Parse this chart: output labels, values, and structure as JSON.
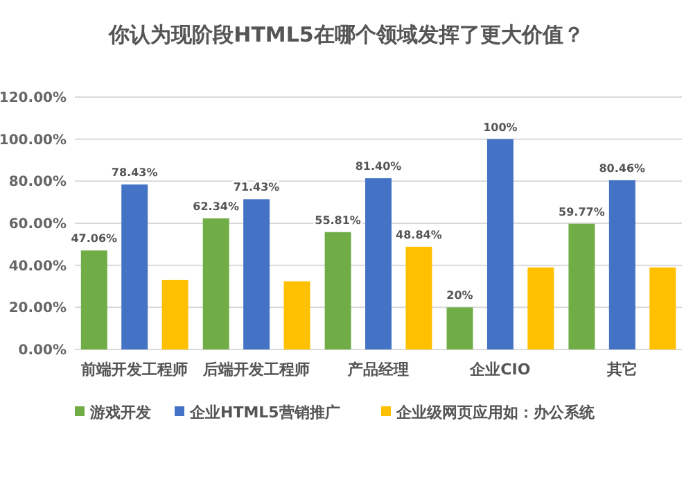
{
  "chart_data": {
    "type": "bar",
    "title": "你认为现阶段HTML5在哪个领域发挥了更大价值？",
    "categories": [
      "前端开发工程师",
      "后端开发工程师",
      "产品经理",
      "企业CIO",
      "其它"
    ],
    "series": [
      {
        "name": "游戏开发",
        "color": "#70ad47",
        "values": [
          47.06,
          62.34,
          55.81,
          20,
          59.77
        ],
        "value_labels": [
          "47.06%",
          "62.34%",
          "55.81%",
          "20%",
          "59.77%"
        ]
      },
      {
        "name": "企业HTML5营销推广",
        "color": "#4472c4",
        "values": [
          78.43,
          71.43,
          81.4,
          100,
          80.46
        ],
        "value_labels": [
          "78.43%",
          "71.43%",
          "81.40%",
          "100%",
          "80.46%"
        ]
      },
      {
        "name": "企业级网页应用如：办公系统",
        "color": "#ffc000",
        "values": [
          33,
          32.4,
          48.84,
          39,
          39
        ],
        "value_labels": [
          null,
          null,
          "48.84%",
          null,
          null
        ]
      }
    ],
    "ylim": [
      0,
      120
    ],
    "yticks": [
      {
        "value": 0,
        "label": "0.00%"
      },
      {
        "value": 20,
        "label": "20.00%"
      },
      {
        "value": 40,
        "label": "40.00%"
      },
      {
        "value": 60,
        "label": "60.00%"
      },
      {
        "value": 80,
        "label": "80.00%"
      },
      {
        "value": 100,
        "label": "100.00%"
      },
      {
        "value": 120,
        "label": "120.00%"
      }
    ],
    "grid": "y",
    "legend": "bottom"
  }
}
